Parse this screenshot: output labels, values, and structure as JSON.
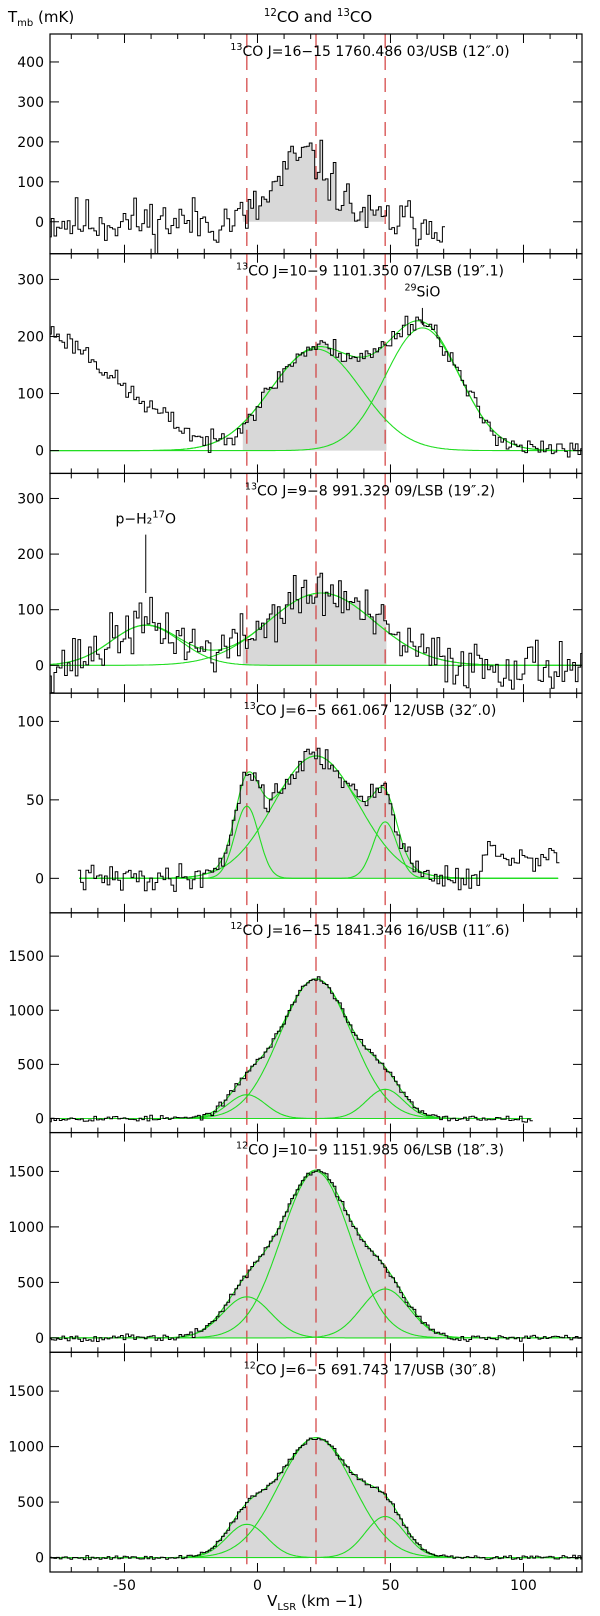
{
  "chart_data": {
    "type": "line",
    "title": "12CO and 13CO",
    "ylabel": "T_mb (mK)",
    "xlabel": "V_LSR (km −1)",
    "xlim": [
      -78,
      122
    ],
    "xticks": [
      -50,
      0,
      50,
      100
    ],
    "reference_velocities": [
      -4,
      22,
      48
    ],
    "panels": [
      {
        "label": {
          "iso": "13",
          "rest": "CO J=16−15   1760.486 03/USB (12″.0)"
        },
        "ylim": [
          -80,
          470
        ],
        "yticks": [
          0,
          100,
          200,
          300,
          400
        ],
        "profile_x_range": [
          -78,
          70
        ],
        "shade_x_range": [
          -5,
          47
        ],
        "noise": 60,
        "seed": 11,
        "components": [
          {
            "amp": 165,
            "center": 18,
            "sigma": 10
          }
        ],
        "fit_visible": false
      },
      {
        "label": {
          "iso": "13",
          "rest": "CO J=10−9   1101.350 07/LSB (19″.1)"
        },
        "annotation": {
          "iso": "29",
          "rest": "SiO",
          "x": 62,
          "y": 270,
          "line_top": 250,
          "line_bottom": 220
        },
        "ylim": [
          -40,
          345
        ],
        "yticks": [
          0,
          100,
          200,
          300
        ],
        "profile_x_range": [
          -78,
          122
        ],
        "shade_x_range": [
          -5,
          48
        ],
        "noise": 18,
        "seed": 23,
        "components": [
          {
            "amp": 178,
            "center": 22,
            "sigma": 17
          },
          {
            "amp": 215,
            "center": 62,
            "sigma": 14
          }
        ],
        "extra_left": {
          "x": [
            -78,
            -65,
            -55,
            -45,
            -35,
            -25,
            -15
          ],
          "y": [
            210,
            175,
            130,
            90,
            60,
            30,
            5
          ]
        },
        "fit_visible": true
      },
      {
        "label": {
          "iso": "13",
          "rest": "CO J=9−8    991.329 09/LSB (19″.2)"
        },
        "annotation": {
          "iso": "17",
          "rest": "p−H₂   O",
          "x": -42,
          "y": 255,
          "line_top": 235,
          "line_bottom": 130
        },
        "ylim": [
          -50,
          345
        ],
        "yticks": [
          0,
          100,
          200,
          300
        ],
        "profile_x_range": [
          -78,
          122
        ],
        "shade_x_range": [
          -5,
          48
        ],
        "noise": 45,
        "seed": 37,
        "components": [
          {
            "amp": 130,
            "center": 24,
            "sigma": 20
          },
          {
            "amp": 72,
            "center": -42,
            "sigma": 13
          }
        ],
        "fit_visible": true
      },
      {
        "label": {
          "iso": "13",
          "rest": "CO J=6−5    661.067 12/USB (32″.0)"
        },
        "ylim": [
          -22,
          118
        ],
        "yticks": [
          0,
          50,
          100
        ],
        "profile_x_range": [
          -67,
          113
        ],
        "shade_x_range": [
          -18,
          64
        ],
        "noise": 8,
        "seed": 41,
        "components": [
          {
            "amp": 78,
            "center": 22,
            "sigma": 16
          },
          {
            "amp": 46,
            "center": -4,
            "sigma": 4.5
          },
          {
            "amp": 36,
            "center": 48,
            "sigma": 4.5
          }
        ],
        "extra_right": {
          "x": [
            85,
            95,
            105,
            113
          ],
          "y": [
            18,
            12,
            10,
            18
          ]
        },
        "fit_visible": true
      },
      {
        "label": {
          "iso": "12",
          "rest": "CO J=16−15   1841.346 16/USB (11″.6)"
        },
        "ylim": [
          -130,
          1900
        ],
        "yticks": [
          0,
          500,
          1000,
          1500
        ],
        "profile_x_range": [
          -78,
          103
        ],
        "shade_x_range": [
          -30,
          75
        ],
        "noise": 28,
        "seed": 53,
        "components": [
          {
            "amp": 1290,
            "center": 22,
            "sigma": 13.5
          },
          {
            "amp": 220,
            "center": -4,
            "sigma": 7
          },
          {
            "amp": 270,
            "center": 48,
            "sigma": 7
          }
        ],
        "fit_visible": true
      },
      {
        "label": {
          "iso": "12",
          "rest": "CO J=10−9   1151.985 06/LSB (18″.3)"
        },
        "ylim": [
          -130,
          1850
        ],
        "yticks": [
          0,
          500,
          1000,
          1500
        ],
        "profile_x_range": [
          -78,
          122
        ],
        "shade_x_range": [
          -30,
          75
        ],
        "noise": 30,
        "seed": 67,
        "components": [
          {
            "amp": 1500,
            "center": 22,
            "sigma": 13
          },
          {
            "amp": 370,
            "center": -4,
            "sigma": 9
          },
          {
            "amp": 440,
            "center": 48,
            "sigma": 9
          }
        ],
        "fit_visible": true
      },
      {
        "label": {
          "iso": "12",
          "rest": "CO J=6−5    691.743 17/USB (30″.8)"
        },
        "ylim": [
          -130,
          1850
        ],
        "yticks": [
          0,
          500,
          1000,
          1500
        ],
        "profile_x_range": [
          -78,
          122
        ],
        "shade_x_range": [
          -30,
          75
        ],
        "noise": 20,
        "seed": 79,
        "components": [
          {
            "amp": 1080,
            "center": 22,
            "sigma": 14
          },
          {
            "amp": 300,
            "center": -4,
            "sigma": 7.5
          },
          {
            "amp": 370,
            "center": 48,
            "sigma": 7.5
          }
        ],
        "fit_visible": true
      }
    ]
  }
}
